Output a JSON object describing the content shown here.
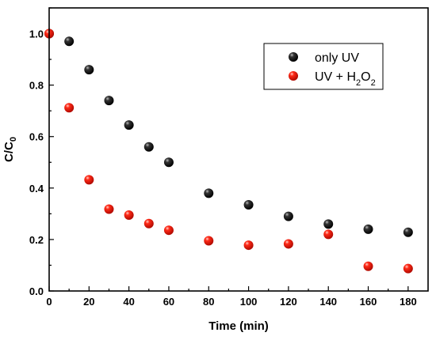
{
  "chart_data": {
    "type": "scatter",
    "xlabel": "Time (min)",
    "ylabel": {
      "main": "C/C",
      "sub": "0"
    },
    "xlim": [
      0,
      190
    ],
    "ylim": [
      0,
      1.1
    ],
    "xticks": [
      0,
      20,
      40,
      60,
      80,
      100,
      120,
      140,
      160,
      180
    ],
    "xtick_labels": [
      "0",
      "20",
      "40",
      "60",
      "80",
      "100",
      "120",
      "140",
      "160",
      "180"
    ],
    "yticks": [
      0.0,
      0.2,
      0.4,
      0.6,
      0.8,
      1.0
    ],
    "ytick_labels": [
      "0.0",
      "0.2",
      "0.4",
      "0.6",
      "0.8",
      "1.0"
    ],
    "grid": false,
    "legend_position": "top-right",
    "series": [
      {
        "name": "only UV",
        "legend_parts": [
          {
            "text": "only UV",
            "sub": false
          }
        ],
        "color": "#000000",
        "points": [
          {
            "x": 0,
            "y": 1.0
          },
          {
            "x": 10,
            "y": 0.97
          },
          {
            "x": 20,
            "y": 0.86
          },
          {
            "x": 30,
            "y": 0.74
          },
          {
            "x": 40,
            "y": 0.645
          },
          {
            "x": 50,
            "y": 0.56
          },
          {
            "x": 60,
            "y": 0.5
          },
          {
            "x": 80,
            "y": 0.38
          },
          {
            "x": 100,
            "y": 0.335
          },
          {
            "x": 120,
            "y": 0.29
          },
          {
            "x": 140,
            "y": 0.26
          },
          {
            "x": 160,
            "y": 0.24
          },
          {
            "x": 180,
            "y": 0.228
          }
        ]
      },
      {
        "name": "UV + H2O2",
        "legend_parts": [
          {
            "text": "UV + H",
            "sub": false
          },
          {
            "text": "2",
            "sub": true
          },
          {
            "text": "O",
            "sub": false
          },
          {
            "text": "2",
            "sub": true
          }
        ],
        "color": "#e8150f",
        "points": [
          {
            "x": 0,
            "y": 1.0
          },
          {
            "x": 10,
            "y": 0.712
          },
          {
            "x": 20,
            "y": 0.432
          },
          {
            "x": 30,
            "y": 0.318
          },
          {
            "x": 40,
            "y": 0.295
          },
          {
            "x": 50,
            "y": 0.262
          },
          {
            "x": 60,
            "y": 0.236
          },
          {
            "x": 80,
            "y": 0.195
          },
          {
            "x": 100,
            "y": 0.178
          },
          {
            "x": 120,
            "y": 0.183
          },
          {
            "x": 140,
            "y": 0.22
          },
          {
            "x": 160,
            "y": 0.096
          },
          {
            "x": 180,
            "y": 0.087
          }
        ]
      }
    ]
  }
}
